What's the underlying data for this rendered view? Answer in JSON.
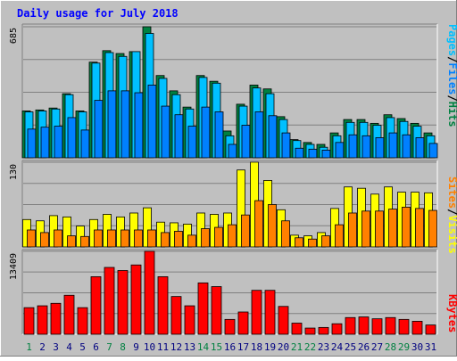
{
  "title": "Daily usage for July 2018",
  "colors": {
    "background": "#c0c0c0",
    "title": "#0000ff",
    "hits": "#008040",
    "files": "#00c0ff",
    "pages": "#0080ff",
    "visits": "#ffff00",
    "sites": "#ff8000",
    "kbytes": "#ff0000",
    "weekend_day": "#008040",
    "weekday": "#000080"
  },
  "legends": {
    "top": [
      "Pages",
      "Files",
      "Hits"
    ],
    "top_sep": "/",
    "mid": [
      "Sites",
      "Visits"
    ],
    "mid_sep": "/",
    "bot": [
      "KBytes"
    ]
  },
  "chart_data": [
    {
      "type": "bar",
      "panel": "hits-files-pages",
      "categories": [
        "1",
        "2",
        "3",
        "4",
        "5",
        "6",
        "7",
        "8",
        "9",
        "10",
        "11",
        "12",
        "13",
        "14",
        "15",
        "16",
        "17",
        "18",
        "19",
        "20",
        "21",
        "22",
        "23",
        "24",
        "25",
        "26",
        "27",
        "28",
        "29",
        "30",
        "31"
      ],
      "ymax_label": "685",
      "ylim": [
        0,
        685
      ],
      "grid": true,
      "series": [
        {
          "name": "Hits",
          "values": [
            245,
            250,
            260,
            335,
            245,
            500,
            560,
            545,
            555,
            685,
            430,
            350,
            265,
            430,
            400,
            140,
            280,
            380,
            360,
            215,
            95,
            80,
            70,
            130,
            200,
            200,
            180,
            225,
            205,
            180,
            130
          ]
        },
        {
          "name": "Files",
          "values": [
            240,
            245,
            255,
            330,
            240,
            495,
            550,
            530,
            555,
            650,
            415,
            330,
            255,
            420,
            390,
            115,
            270,
            365,
            335,
            200,
            90,
            70,
            55,
            115,
            185,
            185,
            170,
            210,
            190,
            165,
            115
          ]
        },
        {
          "name": "Pages",
          "values": [
            150,
            160,
            165,
            210,
            145,
            300,
            350,
            350,
            340,
            380,
            270,
            225,
            165,
            265,
            240,
            70,
            170,
            240,
            220,
            130,
            50,
            45,
            40,
            80,
            120,
            115,
            105,
            130,
            120,
            105,
            75
          ]
        }
      ]
    },
    {
      "type": "bar",
      "panel": "visits-sites",
      "categories": [
        "1",
        "2",
        "3",
        "4",
        "5",
        "6",
        "7",
        "8",
        "9",
        "10",
        "11",
        "12",
        "13",
        "14",
        "15",
        "16",
        "17",
        "18",
        "19",
        "20",
        "21",
        "22",
        "23",
        "24",
        "25",
        "26",
        "27",
        "28",
        "29",
        "30",
        "31"
      ],
      "ymax_label": "130",
      "ylim": [
        0,
        130
      ],
      "grid": true,
      "series": [
        {
          "name": "Visits",
          "values": [
            42,
            40,
            48,
            46,
            32,
            42,
            50,
            46,
            52,
            60,
            38,
            37,
            35,
            52,
            50,
            52,
            118,
            130,
            102,
            57,
            18,
            17,
            22,
            59,
            92,
            90,
            81,
            92,
            84,
            84,
            83
          ]
        },
        {
          "name": "Sites",
          "values": [
            26,
            22,
            26,
            17,
            16,
            26,
            26,
            26,
            26,
            26,
            22,
            24,
            18,
            28,
            30,
            34,
            49,
            71,
            65,
            40,
            14,
            12,
            17,
            34,
            52,
            55,
            55,
            58,
            61,
            59,
            56
          ]
        }
      ]
    },
    {
      "type": "bar",
      "panel": "kbytes",
      "categories": [
        "1",
        "2",
        "3",
        "4",
        "5",
        "6",
        "7",
        "8",
        "9",
        "10",
        "11",
        "12",
        "13",
        "14",
        "15",
        "16",
        "17",
        "18",
        "19",
        "20",
        "21",
        "22",
        "23",
        "24",
        "25",
        "26",
        "27",
        "28",
        "29",
        "30",
        "31"
      ],
      "ymax_label": "13409",
      "ylim": [
        0,
        13409
      ],
      "grid": true,
      "series": [
        {
          "name": "KBytes",
          "values": [
            4300,
            4600,
            5000,
            6300,
            4300,
            9300,
            10800,
            10300,
            11200,
            13409,
            9300,
            6100,
            4600,
            8300,
            7700,
            2400,
            3600,
            7100,
            7100,
            4500,
            1800,
            1000,
            1100,
            1700,
            2700,
            2800,
            2500,
            2700,
            2400,
            2100,
            1500
          ]
        }
      ]
    }
  ]
}
